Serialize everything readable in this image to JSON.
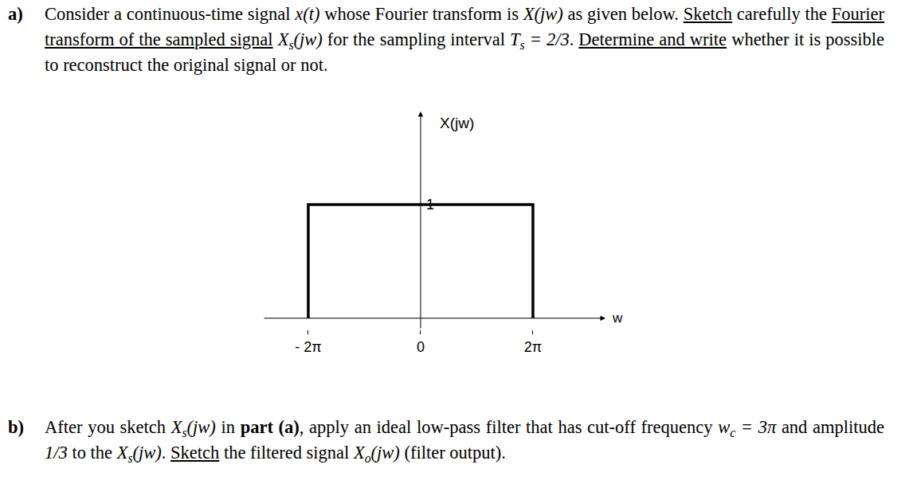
{
  "questions": [
    {
      "label": "a)",
      "text": [
        {
          "text": "Consider a continuous-time signal "
        },
        {
          "text": "x(t)",
          "style": "m"
        },
        {
          "text": " whose Fourier transform is "
        },
        {
          "text": "X(jw)",
          "style": "m"
        },
        {
          "text": " as given below. "
        },
        {
          "text": "Sketch",
          "style": "u"
        },
        {
          "text": " carefully the "
        },
        {
          "text": "Fourier transform of the sampled signal",
          "style": "u"
        },
        {
          "text": " "
        },
        {
          "text": "X",
          "style": "m"
        },
        {
          "text": "s",
          "style": "sub"
        },
        {
          "text": "(jw)",
          "style": "m"
        },
        {
          "text": " for the sampling interval "
        },
        {
          "text": "T",
          "style": "m"
        },
        {
          "text": "s",
          "style": "sub"
        },
        {
          "text": " = 2/3",
          "style": "m"
        },
        {
          "text": ". "
        },
        {
          "text": "Determine and write",
          "style": "u"
        },
        {
          "text": " whether it is possible to reconstruct the original signal or not."
        }
      ]
    },
    {
      "label": "b)",
      "text": [
        {
          "text": "After you sketch "
        },
        {
          "text": "X",
          "style": "m"
        },
        {
          "text": "s",
          "style": "sub"
        },
        {
          "text": "(jw)",
          "style": "m"
        },
        {
          "text": " in "
        },
        {
          "text": "part (a)",
          "style": "b"
        },
        {
          "text": ", apply an ideal low-pass filter that has cut-off frequency "
        },
        {
          "text": "w",
          "style": "m"
        },
        {
          "text": "c",
          "style": "sub"
        },
        {
          "text": " = 3π",
          "style": "m"
        },
        {
          "text": " and amplitude "
        },
        {
          "text": "1/3",
          "style": "m"
        },
        {
          "text": "  to the "
        },
        {
          "text": "X",
          "style": "m"
        },
        {
          "text": "s",
          "style": "sub"
        },
        {
          "text": "(jw)",
          "style": "m"
        },
        {
          "text": ". "
        },
        {
          "text": "Sketch",
          "style": "u"
        },
        {
          "text": " the filtered signal "
        },
        {
          "text": "X",
          "style": "m"
        },
        {
          "text": "o",
          "style": "sub"
        },
        {
          "text": "(jw)",
          "style": "m"
        },
        {
          "text": " (filter output)."
        }
      ]
    }
  ],
  "chart_data": {
    "type": "line",
    "x_label": "w",
    "y_label": "X(jw)",
    "x": [
      -6.283,
      -6.283,
      6.283,
      6.283
    ],
    "values": [
      0,
      1,
      1,
      0
    ],
    "color": "#000000",
    "xlim": [
      -8.82,
      10.34
    ],
    "ylim": [
      -0.1,
      1.82
    ],
    "xticks": [
      {
        "value": -6.283,
        "label": "- 2π"
      },
      0,
      {
        "value": 6.283,
        "label": "2π"
      }
    ],
    "yticks": [
      1
    ],
    "grid": false
  }
}
